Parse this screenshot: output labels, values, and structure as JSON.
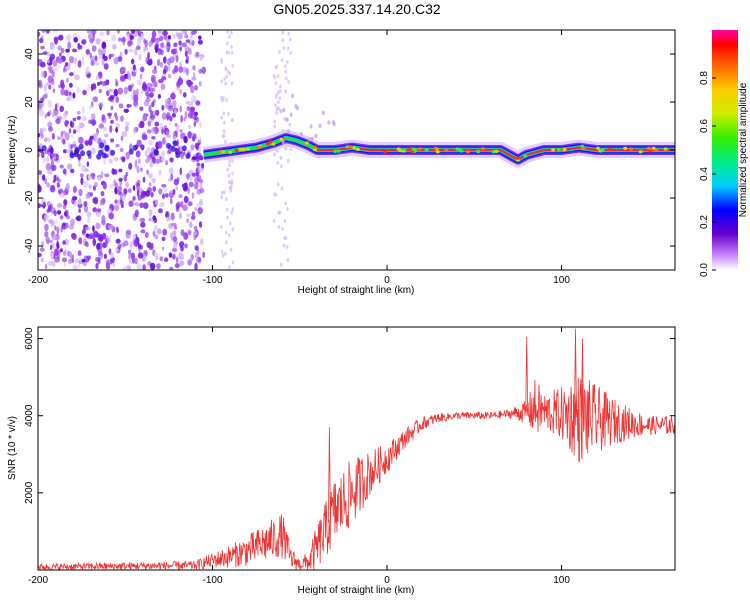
{
  "title": "GN05.2025.337.14.20.C32",
  "chart_data": [
    {
      "type": "heatmap",
      "name": "spectrogram",
      "xlabel": "Height of straight line (km)",
      "ylabel": "Frequency (Hz)",
      "xlim": [
        -200,
        165
      ],
      "ylim": [
        -50,
        50
      ],
      "xticks": [
        -200,
        -100,
        0,
        100
      ],
      "yticks": [
        -40,
        -20,
        0,
        20,
        40
      ],
      "colorbar": {
        "label": "Normalized spectral amplitude",
        "range": [
          0,
          1
        ],
        "ticks": [
          0.0,
          0.2,
          0.4,
          0.6,
          0.8
        ]
      },
      "ridge": {
        "x": [
          -105,
          -95,
          -85,
          -75,
          -65,
          -58,
          -52,
          -45,
          -40,
          -30,
          -20,
          -10,
          0,
          20,
          40,
          60,
          65,
          70,
          75,
          80,
          90,
          100,
          110,
          120,
          130,
          140,
          150,
          165
        ],
        "freq": [
          -2,
          -1,
          0,
          1,
          3,
          5,
          4,
          2,
          0,
          0,
          1,
          0,
          0,
          0,
          0,
          0,
          0,
          -2,
          -4,
          -2,
          0,
          0,
          1,
          0,
          0,
          0,
          0,
          0
        ]
      },
      "noise_region": [
        -200,
        -105
      ]
    },
    {
      "type": "line",
      "name": "snr",
      "xlabel": "Height of straight line (km)",
      "ylabel": "SNR (10 * v/v)",
      "xlim": [
        -200,
        165
      ],
      "ylim": [
        0,
        6300
      ],
      "xticks": [
        -200,
        -100,
        0,
        100
      ],
      "yticks": [
        2000,
        4000,
        6000
      ],
      "color": "#ee3333",
      "envelope": {
        "x": [
          -200,
          -150,
          -110,
          -100,
          -90,
          -80,
          -70,
          -60,
          -55,
          -50,
          -45,
          -40,
          -30,
          -20,
          -10,
          0,
          10,
          20,
          30,
          40,
          50,
          60,
          70,
          80,
          85,
          90,
          100,
          110,
          120,
          130,
          140,
          150,
          165
        ],
        "mean": [
          80,
          100,
          120,
          250,
          350,
          500,
          700,
          900,
          300,
          150,
          200,
          600,
          1500,
          2000,
          2500,
          2900,
          3400,
          3800,
          3950,
          4000,
          4000,
          4000,
          4050,
          4100,
          4200,
          4100,
          4050,
          3950,
          3900,
          3850,
          3800,
          3750,
          3750
        ],
        "spread": [
          80,
          100,
          120,
          200,
          300,
          400,
          500,
          600,
          300,
          150,
          300,
          600,
          900,
          900,
          600,
          400,
          250,
          180,
          120,
          100,
          100,
          100,
          120,
          300,
          800,
          500,
          700,
          1200,
          900,
          600,
          400,
          250,
          250
        ]
      },
      "peaks": [
        {
          "x": 80,
          "y": 6050
        },
        {
          "x": 108,
          "y": 6250
        },
        {
          "x": 112,
          "y": 6000
        },
        {
          "x": -33,
          "y": 3700
        }
      ]
    }
  ]
}
